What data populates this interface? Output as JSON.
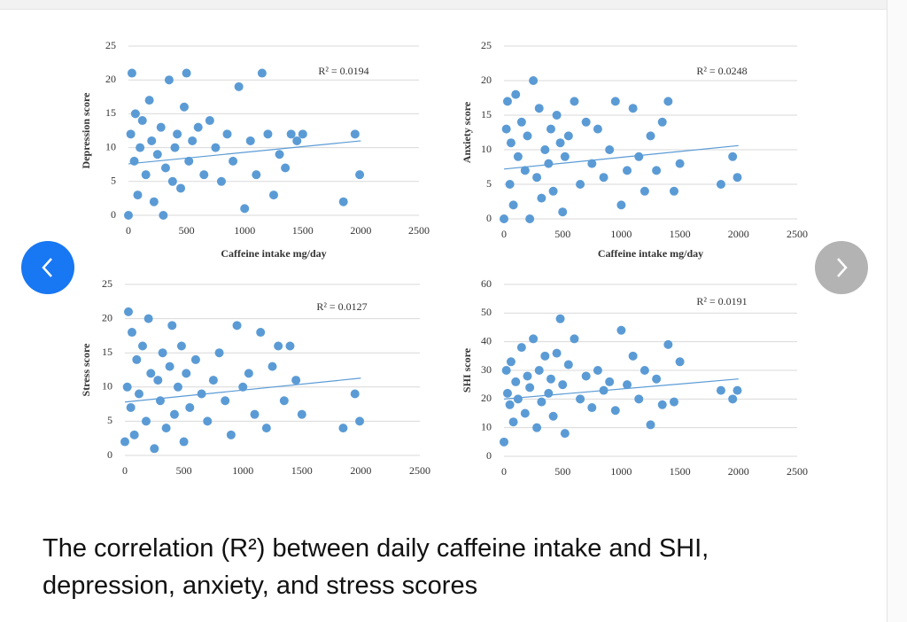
{
  "chart_data": [
    {
      "type": "scatter",
      "ylabel": "Depression score",
      "xlabel": "Caffeine intake mg/day",
      "annotation": "R² = 0.0194",
      "color": "#5b9bd5",
      "x": [
        0,
        20,
        30,
        50,
        60,
        80,
        100,
        120,
        150,
        180,
        200,
        220,
        250,
        280,
        300,
        320,
        350,
        380,
        400,
        420,
        450,
        480,
        500,
        520,
        550,
        600,
        650,
        700,
        750,
        800,
        850,
        900,
        950,
        1000,
        1050,
        1100,
        1150,
        1200,
        1250,
        1300,
        1350,
        1400,
        1450,
        1500,
        1850,
        1950,
        1990
      ],
      "values": [
        0,
        12,
        21,
        8,
        15,
        3,
        10,
        14,
        6,
        17,
        11,
        2,
        9,
        13,
        0,
        7,
        20,
        5,
        10,
        12,
        4,
        16,
        21,
        8,
        11,
        13,
        6,
        14,
        10,
        5,
        12,
        8,
        19,
        1,
        11,
        6,
        21,
        12,
        3,
        9,
        7,
        12,
        11,
        12,
        2,
        12,
        6
      ],
      "trendline": {
        "x": [
          0,
          2000
        ],
        "y": [
          7.6,
          11
        ]
      },
      "xlim": [
        0,
        2500
      ],
      "xticks": [
        0,
        500,
        1000,
        1500,
        2000,
        2500
      ],
      "ylim": [
        0,
        25
      ],
      "yticks": [
        0,
        5,
        10,
        15,
        20,
        25
      ],
      "grid": true
    },
    {
      "type": "scatter",
      "ylabel": "Anxiety score",
      "xlabel": "Caffeine intake mg/day",
      "annotation": "R² = 0.0248",
      "color": "#5b9bd5",
      "x": [
        0,
        20,
        30,
        50,
        60,
        80,
        100,
        120,
        150,
        180,
        200,
        220,
        250,
        280,
        300,
        320,
        350,
        380,
        400,
        420,
        450,
        480,
        500,
        520,
        550,
        600,
        650,
        700,
        750,
        800,
        850,
        900,
        950,
        1000,
        1050,
        1100,
        1150,
        1200,
        1250,
        1300,
        1350,
        1400,
        1450,
        1500,
        1850,
        1950,
        1990
      ],
      "values": [
        0,
        13,
        17,
        5,
        11,
        2,
        18,
        9,
        14,
        7,
        12,
        0,
        20,
        6,
        16,
        3,
        10,
        8,
        13,
        4,
        15,
        11,
        1,
        9,
        12,
        17,
        5,
        14,
        8,
        13,
        6,
        10,
        17,
        2,
        7,
        16,
        9,
        4,
        12,
        7,
        14,
        17,
        4,
        8,
        5,
        9,
        6
      ],
      "trendline": {
        "x": [
          0,
          2000
        ],
        "y": [
          7.2,
          10.6
        ]
      },
      "xlim": [
        0,
        2500
      ],
      "xticks": [
        0,
        500,
        1000,
        1500,
        2000,
        2500
      ],
      "ylim": [
        0,
        25
      ],
      "yticks": [
        0,
        5,
        10,
        15,
        20,
        25
      ],
      "grid": true
    },
    {
      "type": "scatter",
      "ylabel": "Stress score",
      "annotation": "R² = 0.0127",
      "color": "#5b9bd5",
      "x": [
        0,
        20,
        30,
        50,
        60,
        80,
        100,
        120,
        150,
        180,
        200,
        220,
        250,
        280,
        300,
        320,
        350,
        380,
        400,
        420,
        450,
        480,
        500,
        520,
        550,
        600,
        650,
        700,
        750,
        800,
        850,
        900,
        950,
        1000,
        1050,
        1100,
        1150,
        1200,
        1250,
        1300,
        1350,
        1400,
        1450,
        1500,
        1850,
        1950,
        1990
      ],
      "values": [
        2,
        10,
        21,
        7,
        18,
        3,
        14,
        9,
        16,
        5,
        20,
        12,
        1,
        11,
        8,
        15,
        4,
        13,
        19,
        6,
        10,
        16,
        2,
        12,
        7,
        14,
        9,
        5,
        11,
        15,
        8,
        3,
        19,
        10,
        12,
        6,
        18,
        4,
        13,
        16,
        8,
        16,
        11,
        6,
        4,
        9,
        5
      ],
      "trendline": {
        "x": [
          0,
          2000
        ],
        "y": [
          7.8,
          11.3
        ]
      },
      "xlim": [
        0,
        2500
      ],
      "xticks": [
        0,
        500,
        1000,
        1500,
        2000,
        2500
      ],
      "ylim": [
        0,
        25
      ],
      "yticks": [
        0,
        5,
        10,
        15,
        20,
        25
      ],
      "grid": true
    },
    {
      "type": "scatter",
      "ylabel": "SHI score",
      "annotation": "R² = 0.0191",
      "color": "#5b9bd5",
      "x": [
        0,
        20,
        30,
        50,
        60,
        80,
        100,
        120,
        150,
        180,
        200,
        220,
        250,
        280,
        300,
        320,
        350,
        380,
        400,
        420,
        450,
        480,
        500,
        520,
        550,
        600,
        650,
        700,
        750,
        800,
        850,
        900,
        950,
        1000,
        1050,
        1100,
        1150,
        1200,
        1250,
        1300,
        1350,
        1400,
        1450,
        1500,
        1850,
        1950,
        1990
      ],
      "values": [
        5,
        30,
        22,
        18,
        33,
        12,
        26,
        20,
        38,
        15,
        28,
        24,
        41,
        10,
        30,
        19,
        35,
        22,
        27,
        14,
        36,
        48,
        25,
        8,
        32,
        41,
        20,
        28,
        17,
        30,
        23,
        26,
        16,
        44,
        25,
        35,
        20,
        30,
        11,
        27,
        18,
        39,
        19,
        33,
        23,
        20,
        23
      ],
      "trendline": {
        "x": [
          0,
          2000
        ],
        "y": [
          20,
          27
        ]
      },
      "xlim": [
        0,
        2500
      ],
      "xticks": [
        0,
        500,
        1000,
        1500,
        2000,
        2500
      ],
      "ylim": [
        0,
        60
      ],
      "yticks": [
        0,
        10,
        20,
        30,
        40,
        50,
        60
      ],
      "grid": true
    }
  ],
  "caption": "The correlation (R²) between daily caffeine intake and SHI, depression, anxiety, and stress scores"
}
